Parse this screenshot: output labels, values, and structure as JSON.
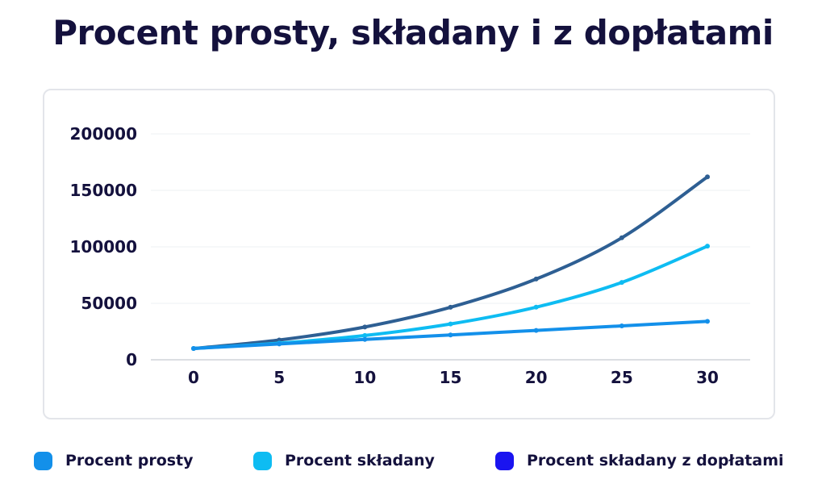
{
  "title": "Procent prosty, składany i z dopłatami",
  "chart_data": {
    "type": "line",
    "title": "Procent prosty, składany i z dopłatami",
    "xlabel": "",
    "ylabel": "",
    "x": [
      0,
      5,
      10,
      15,
      20,
      25,
      30
    ],
    "xlim": [
      0,
      30
    ],
    "ylim": [
      0,
      200000
    ],
    "x_ticks": [
      "0",
      "5",
      "10",
      "15",
      "20",
      "25",
      "30"
    ],
    "y_ticks": [
      "0",
      "50000",
      "100000",
      "150000",
      "200000"
    ],
    "grid": true,
    "legend_position": "bottom",
    "series": [
      {
        "name": "Procent prosty",
        "color": "#1390ea",
        "values": [
          10000,
          14000,
          18000,
          22000,
          26000,
          30000,
          34000
        ]
      },
      {
        "name": "Procent składany",
        "color": "#0ebcf2",
        "values": [
          10000,
          14700,
          21500,
          31700,
          46600,
          68500,
          100600
        ]
      },
      {
        "name": "Procent składany z dopłatami",
        "color": "#2e5f93",
        "legend_color": "#1a14f0",
        "values": [
          10000,
          17500,
          29000,
          46500,
          71500,
          108000,
          162000
        ]
      }
    ]
  }
}
